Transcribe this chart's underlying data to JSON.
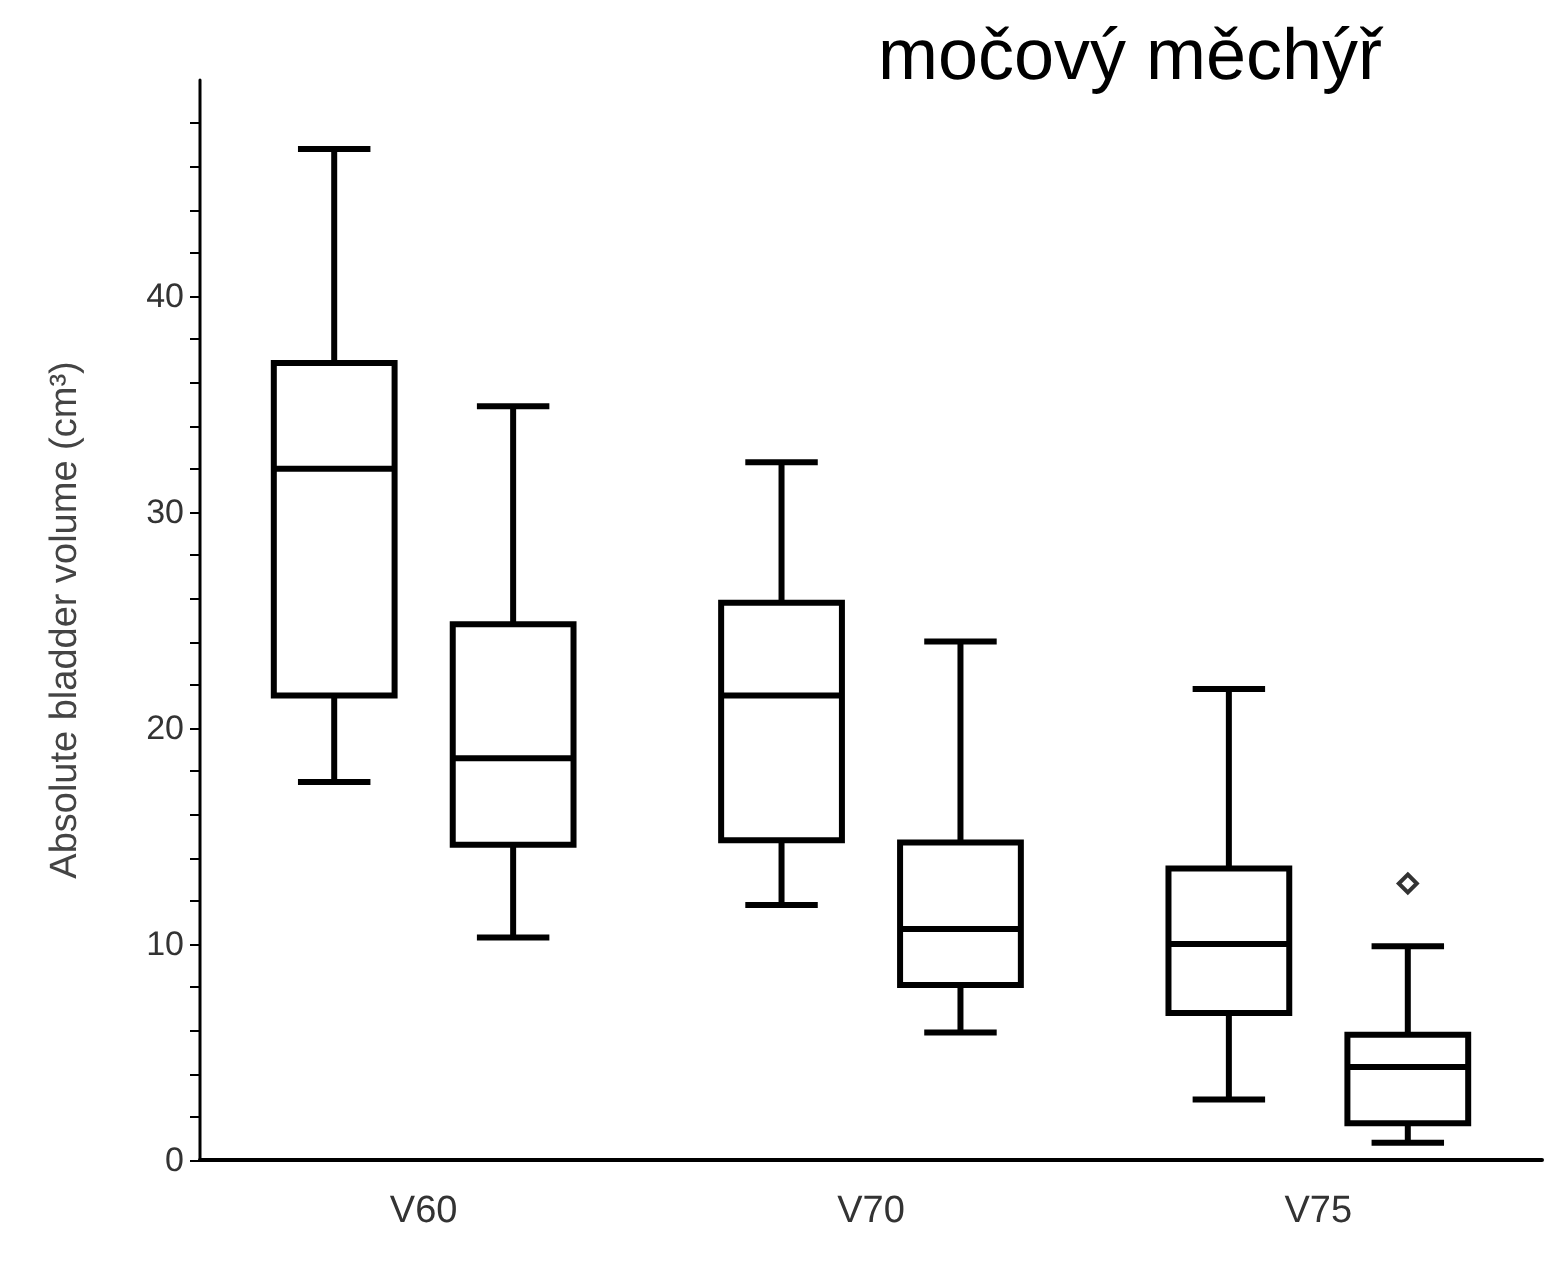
{
  "chart_data": {
    "type": "box",
    "title": "močový měchýř",
    "ylabel": "Absolute bladder volume (cm³)",
    "categories": [
      "V60",
      "V70",
      "V75"
    ],
    "series": [
      {
        "color": "#000000",
        "boxes": [
          {
            "low": 17.5,
            "q1": 21.5,
            "median": 32.0,
            "q3": 36.9,
            "high": 46.8
          },
          {
            "low": 11.8,
            "q1": 14.8,
            "median": 21.5,
            "q3": 25.8,
            "high": 32.3
          },
          {
            "low": 2.8,
            "q1": 6.8,
            "median": 10.0,
            "q3": 13.5,
            "high": 21.8
          }
        ]
      },
      {
        "color": "#000000",
        "boxes": [
          {
            "low": 10.3,
            "q1": 14.6,
            "median": 18.6,
            "q3": 24.8,
            "high": 34.9
          },
          {
            "low": 5.9,
            "q1": 8.1,
            "median": 10.7,
            "q3": 14.7,
            "high": 24.0
          },
          {
            "low": 0.8,
            "q1": 1.7,
            "median": 4.3,
            "q3": 5.8,
            "high": 9.9,
            "outliers": [
              12.8
            ]
          }
        ]
      }
    ],
    "ylim": [
      0,
      50
    ],
    "yticks": [
      0,
      {
        "value": 2,
        "label": null
      },
      {
        "value": 4,
        "label": null
      },
      {
        "value": 6,
        "label": null
      },
      {
        "value": 8,
        "label": null
      },
      10,
      {
        "value": 12,
        "label": null
      },
      {
        "value": 14,
        "label": null
      },
      {
        "value": 16,
        "label": null
      },
      {
        "value": 18,
        "label": null
      },
      20,
      {
        "value": 22,
        "label": null
      },
      {
        "value": 24,
        "label": null
      },
      {
        "value": 26,
        "label": null
      },
      {
        "value": 28,
        "label": null
      },
      30,
      {
        "value": 32,
        "label": null
      },
      {
        "value": 34,
        "label": null
      },
      {
        "value": 36,
        "label": null
      },
      {
        "value": 38,
        "label": null
      },
      40,
      {
        "value": 42,
        "label": null
      },
      {
        "value": 44,
        "label": null
      },
      {
        "value": 46,
        "label": null
      },
      {
        "value": 48,
        "label": null
      }
    ],
    "grid": false,
    "marker": "diamond"
  }
}
